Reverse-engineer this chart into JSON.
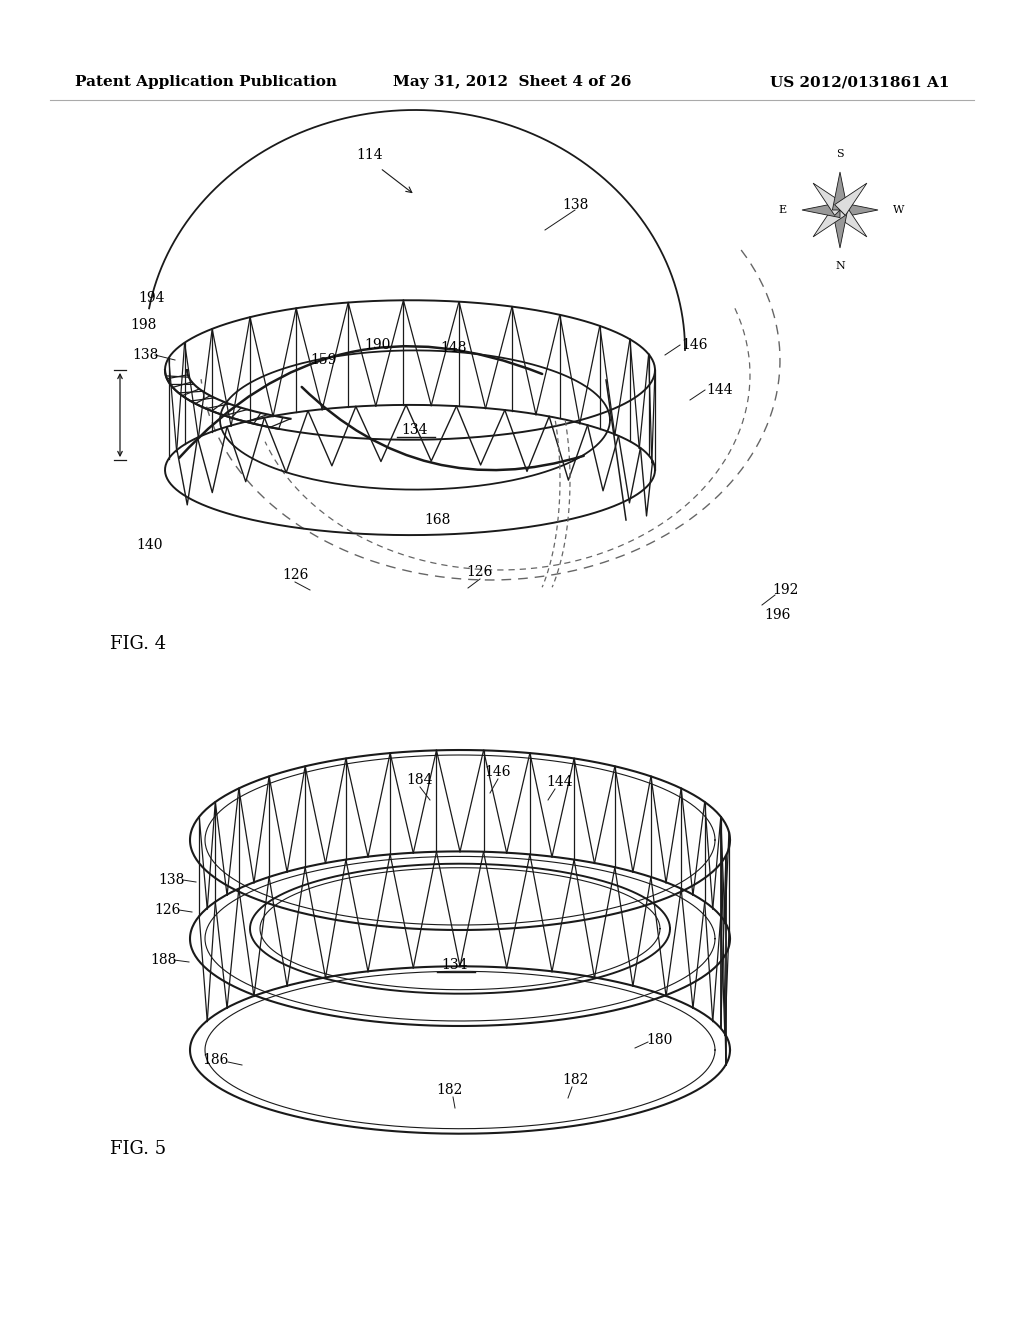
{
  "header_left": "Patent Application Publication",
  "header_mid": "May 31, 2012  Sheet 4 of 26",
  "header_right": "US 2012/0131861 A1",
  "fig4_label": "FIG. 4",
  "fig5_label": "FIG. 5",
  "bg_color": "#ffffff",
  "line_color": "#1a1a1a",
  "dashed_color": "#666666",
  "text_color": "#000000"
}
